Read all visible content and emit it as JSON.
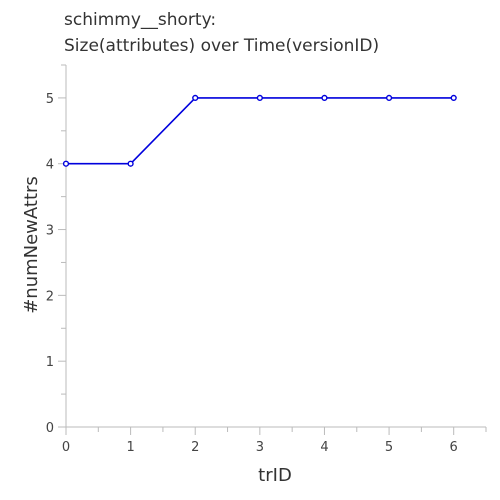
{
  "chart_data": {
    "type": "line",
    "title_line1": "schimmy__shorty:",
    "title_line2": "Size(attributes) over Time(versionID)",
    "xlabel": "trID",
    "ylabel": "#numNewAttrs",
    "xlim": [
      0,
      6.5
    ],
    "ylim": [
      0,
      5.5
    ],
    "x_ticks": [
      0,
      1,
      2,
      3,
      4,
      5,
      6
    ],
    "y_ticks": [
      0,
      1,
      2,
      3,
      4,
      5
    ],
    "grid": false,
    "series": [
      {
        "x": [
          0,
          1,
          2,
          3,
          4,
          5,
          6
        ],
        "values": [
          4,
          4,
          5,
          5,
          5,
          5,
          5
        ],
        "color": "#0000dd"
      }
    ]
  }
}
